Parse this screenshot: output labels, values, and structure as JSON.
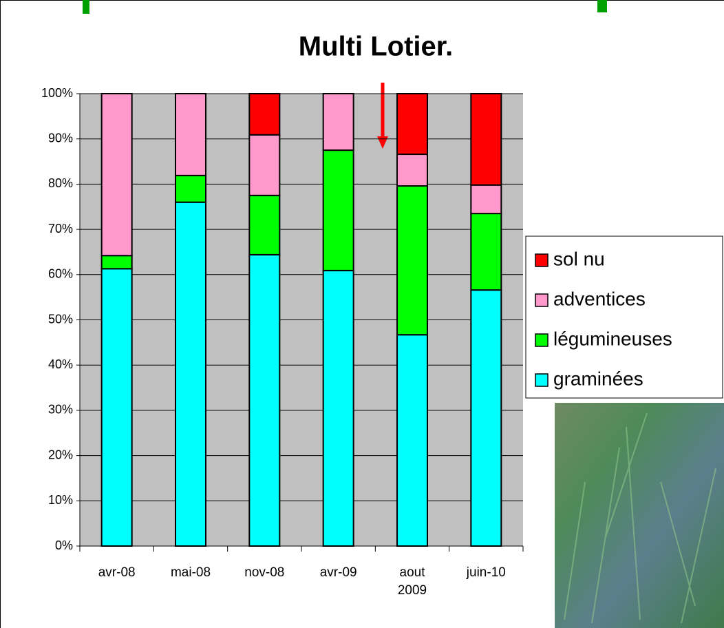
{
  "chart_data": {
    "type": "stacked_bar",
    "title": "Multi Lotier.",
    "categories": [
      "avr-08",
      "mai-08",
      "nov-08",
      "avr-09",
      "aout 2009",
      "juin-10"
    ],
    "series": [
      {
        "name": "graminées",
        "color": "#00ffff",
        "values": [
          61.3,
          76.0,
          64.4,
          60.9,
          46.7,
          56.6
        ]
      },
      {
        "name": "légumineuses",
        "color": "#00ff00",
        "values": [
          2.9,
          5.9,
          13.1,
          26.6,
          32.9,
          16.9
        ]
      },
      {
        "name": "adventices",
        "color": "#ff99cc",
        "values": [
          35.8,
          18.1,
          13.4,
          12.5,
          7.0,
          6.3
        ]
      },
      {
        "name": "sol nu",
        "color": "#ff0000",
        "values": [
          0,
          0,
          9.1,
          0,
          13.4,
          20.2
        ]
      }
    ],
    "ylim": [
      0,
      100
    ],
    "yticks": [
      {
        "value": 0,
        "label": "0%"
      },
      {
        "value": 10,
        "label": "10%"
      },
      {
        "value": 20,
        "label": "20%"
      },
      {
        "value": 30,
        "label": "30%"
      },
      {
        "value": 40,
        "label": "40%"
      },
      {
        "value": 50,
        "label": "50%"
      },
      {
        "value": 60,
        "label": "60%"
      },
      {
        "value": 70,
        "label": "70%"
      },
      {
        "value": 80,
        "label": "80%"
      },
      {
        "value": 90,
        "label": "90%"
      },
      {
        "value": 100,
        "label": "100%"
      }
    ],
    "grid": true
  }
}
